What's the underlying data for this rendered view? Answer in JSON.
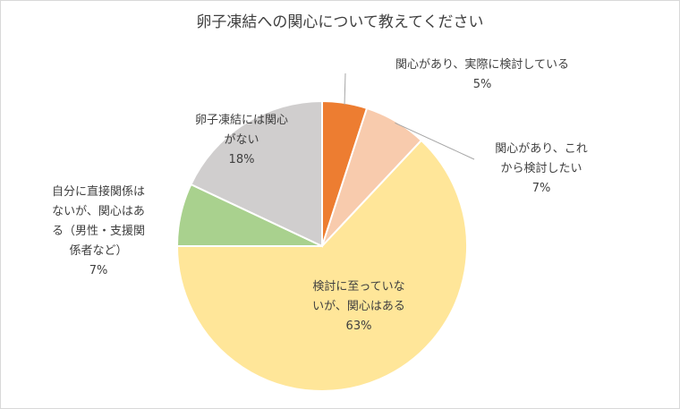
{
  "chart_data": {
    "type": "pie",
    "title": "卵子凍結への関心について教えてください",
    "slices": [
      {
        "label": "関心があり、実際に検討している",
        "lines": [
          "関心があり、実際に検討している"
        ],
        "value": 5,
        "display": "5%",
        "color": "#ed7d31"
      },
      {
        "label": "関心があり、これから検討したい",
        "lines": [
          "関心があり、これ",
          "から検討したい"
        ],
        "value": 7,
        "display": "7%",
        "color": "#f8cbad"
      },
      {
        "label": "検討に至っていないが、関心はある",
        "lines": [
          "検討に至っていな",
          "いが、関心はある"
        ],
        "value": 63,
        "display": "63%",
        "color": "#ffe699"
      },
      {
        "label": "自分に直接関係はないが、関心はある（男性・支援関係者など）",
        "lines": [
          "自分に直接関係は",
          "ないが、関心はあ",
          "る（男性・支援関",
          "係者など）"
        ],
        "value": 7,
        "display": "7%",
        "color": "#a9d18e"
      },
      {
        "label": "卵子凍結には関心がない",
        "lines": [
          "卵子凍結には関心",
          "がない"
        ],
        "value": 18,
        "display": "18%",
        "color": "#d0cece"
      }
    ]
  }
}
